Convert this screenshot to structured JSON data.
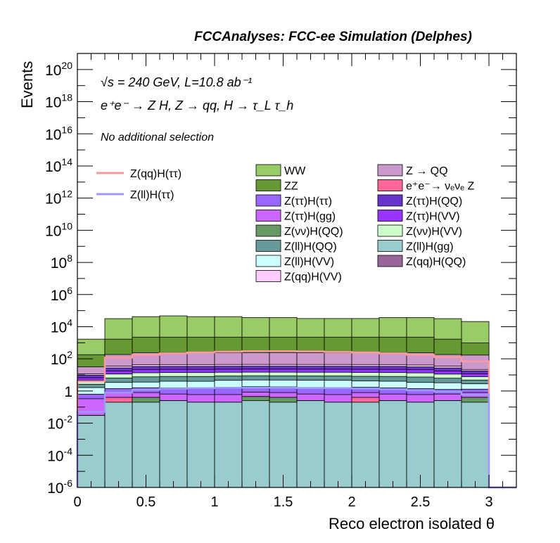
{
  "header": {
    "title": "FCCAnalyses: FCC-ee Simulation (Delphes)"
  },
  "annotations": {
    "energy_lumi": "√s = 240 GeV, L=10.8 ab⁻¹",
    "process": "e⁺e⁻ → Z H, Z → qq, H → τ_L τ_h",
    "selection": "No additional selection"
  },
  "chart_data": {
    "type": "histogram",
    "title": "",
    "xlabel": "Reco electron isolated θ",
    "ylabel": "Events",
    "x_edges": [
      0,
      0.2,
      0.4,
      0.6,
      0.8,
      1.0,
      1.2,
      1.4,
      1.6,
      1.8,
      2.0,
      2.2,
      2.4,
      2.6,
      2.8,
      3.0,
      3.2
    ],
    "xlim": [
      0,
      3.2
    ],
    "ylim": [
      1e-06,
      1e+21
    ],
    "yscale": "log",
    "xticks": [
      "0",
      "0.5",
      "1",
      "1.5",
      "2",
      "2.5",
      "3"
    ],
    "yticks": [
      "10^-6",
      "10^-4",
      "10^-2",
      "1",
      "10^2",
      "10^4",
      "10^6",
      "10^8",
      "10^10",
      "10^12",
      "10^14",
      "10^16",
      "10^18",
      "10^20"
    ],
    "stacked_backgrounds": [
      {
        "name": "Z(ll)H(gg)",
        "color": "#99cccc",
        "values": [
          0.03,
          0.2,
          0.2,
          0.25,
          0.2,
          0.2,
          0.25,
          0.2,
          0.25,
          0.2,
          0.2,
          0.25,
          0.2,
          0.25,
          0.2,
          0
        ]
      },
      {
        "name": "Z(νν)H(QQ)",
        "color": "#669966",
        "values": [
          0,
          0,
          0.2,
          0,
          0,
          0,
          0.2,
          0.2,
          0,
          0,
          0,
          0,
          0,
          0,
          0.2,
          0
        ]
      },
      {
        "name": "e⁺e⁻→ νₑνₑ Z",
        "color": "#ff6699",
        "values": [
          0,
          0.2,
          0,
          0,
          0,
          0,
          0,
          0,
          0,
          0,
          0.2,
          0,
          0,
          0,
          0,
          0
        ]
      },
      {
        "name": "Z(qq)H(QQ)",
        "color": "#996699",
        "values": [
          0,
          0.0003,
          0,
          0,
          0,
          0,
          0,
          0,
          0,
          0,
          0,
          0,
          0,
          0,
          0,
          0
        ]
      },
      {
        "name": "Z(ττ)H(gg)",
        "color": "#cc66ff",
        "values": [
          0.3,
          0.4,
          0.4,
          0.4,
          0.4,
          0.4,
          0.4,
          0.4,
          0.4,
          0.4,
          0.4,
          0.4,
          0.4,
          0.4,
          0.4,
          0
        ]
      },
      {
        "name": "Z(ττ)H(ττ)",
        "color": "#9966ff",
        "values": [
          0.3,
          0.6,
          0.8,
          0.9,
          0.9,
          1,
          1,
          1,
          1,
          1,
          0.9,
          0.9,
          0.8,
          0.6,
          0.5,
          0
        ]
      },
      {
        "name": "Z(ll)H(VV)",
        "color": "#ccffff",
        "values": [
          1,
          2,
          2,
          2.5,
          2.5,
          3,
          3,
          3,
          3,
          3,
          2.5,
          2.5,
          2,
          2,
          1.5,
          0
        ]
      },
      {
        "name": "Z(ll)H(QQ)",
        "color": "#669999",
        "values": [
          1,
          3,
          4,
          4,
          4,
          4,
          4,
          4,
          4,
          4,
          4,
          4,
          4,
          3,
          2,
          0
        ]
      },
      {
        "name": "Z(νν)H(VV)",
        "color": "#ccffcc",
        "values": [
          2,
          5,
          6,
          6,
          6,
          6,
          6,
          6,
          6,
          6,
          6,
          6,
          6,
          5,
          3,
          0
        ]
      },
      {
        "name": "Z(ττ)H(VV)",
        "color": "#9933ff",
        "values": [
          2,
          6,
          8,
          8,
          8,
          8,
          8,
          8,
          8,
          8,
          8,
          8,
          8,
          6,
          4,
          0
        ]
      },
      {
        "name": "Z(ττ)H(QQ)",
        "color": "#6633cc",
        "values": [
          3,
          10,
          12,
          12,
          12,
          12,
          12,
          12,
          12,
          12,
          12,
          12,
          10,
          10,
          6,
          0
        ]
      },
      {
        "name": "Z(qq)H(VV)",
        "color": "#ffccff",
        "values": [
          2,
          8,
          10,
          10,
          10,
          10,
          10,
          10,
          10,
          10,
          10,
          10,
          10,
          8,
          4,
          0
        ]
      },
      {
        "name": "Z → QQ",
        "color": "#cc99cc",
        "values": [
          20,
          150,
          200,
          200,
          200,
          200,
          200,
          200,
          200,
          200,
          200,
          200,
          200,
          150,
          150,
          0
        ]
      },
      {
        "name": "ZZ",
        "color": "#669933",
        "values": [
          150,
          1500,
          2000,
          2000,
          2000,
          2000,
          2000,
          2000,
          2000,
          2000,
          2000,
          2000,
          2000,
          1500,
          800,
          0
        ]
      },
      {
        "name": "WW",
        "color": "#99cc66",
        "values": [
          1500,
          30000,
          40000,
          45000,
          40000,
          40000,
          35000,
          35000,
          30000,
          30000,
          30000,
          35000,
          35000,
          30000,
          20000,
          0
        ]
      }
    ],
    "signals": [
      {
        "name": "Z(qq)H(ττ)",
        "color": "#ff9999",
        "values": [
          4,
          120,
          180,
          220,
          250,
          280,
          300,
          300,
          290,
          270,
          250,
          220,
          180,
          130,
          70,
          0
        ]
      },
      {
        "name": "Z(ll)H(ττ)",
        "color": "#9999ff",
        "values": [
          0.05,
          0.8,
          1.2,
          1.4,
          1.5,
          1.6,
          1.6,
          1.6,
          1.5,
          1.5,
          1.4,
          1.3,
          1.1,
          0.9,
          0.6,
          0
        ]
      }
    ],
    "legend_signals": [
      "Z(qq)H(ττ)",
      "Z(ll)H(ττ)"
    ],
    "legend_col1": [
      "WW",
      "ZZ",
      "Z(ττ)H(ττ)",
      "Z(ττ)H(gg)",
      "Z(νν)H(QQ)",
      "Z(ll)H(QQ)",
      "Z(ll)H(VV)",
      "Z(qq)H(VV)"
    ],
    "legend_col2": [
      "Z → QQ",
      "e⁺e⁻→ νₑνₑ Z",
      "Z(ττ)H(QQ)",
      "Z(ττ)H(VV)",
      "Z(νν)H(VV)",
      "Z(ll)H(gg)",
      "Z(qq)H(QQ)"
    ]
  }
}
